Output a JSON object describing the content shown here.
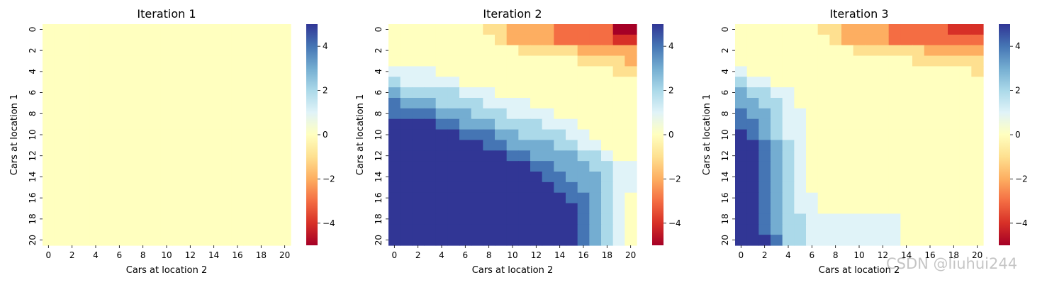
{
  "chart_data": [
    {
      "type": "heatmap",
      "title": "Iteration 1",
      "xlabel": "Cars at location 2",
      "ylabel": "Cars at location 1",
      "x_tick_labels": [
        "0",
        "2",
        "4",
        "6",
        "8",
        "10",
        "12",
        "14",
        "16",
        "18",
        "20"
      ],
      "y_tick_labels": [
        "0",
        "2",
        "4",
        "6",
        "8",
        "10",
        "12",
        "14",
        "16",
        "18",
        "20"
      ],
      "colorbar_ticks": [
        "−4",
        "−2",
        "0",
        "2",
        "4"
      ],
      "colormap": "RdYlBu",
      "value_range": [
        -5,
        5
      ],
      "grid_size": 21,
      "matrix": "all zeros (21x21)",
      "rows": []
    },
    {
      "type": "heatmap",
      "title": "Iteration 2",
      "xlabel": "Cars at location 2",
      "ylabel": "Cars at location 1",
      "x_tick_labels": [
        "0",
        "2",
        "4",
        "6",
        "8",
        "10",
        "12",
        "14",
        "16",
        "18",
        "20"
      ],
      "y_tick_labels": [
        "0",
        "2",
        "4",
        "6",
        "8",
        "10",
        "12",
        "14",
        "16",
        "18",
        "20"
      ],
      "colorbar_ticks": [
        "−4",
        "−2",
        "0",
        "2",
        "4"
      ],
      "colormap": "RdYlBu",
      "value_range": [
        -5,
        5
      ],
      "grid_size": 21,
      "rows": [
        [
          0,
          0,
          0,
          0,
          0,
          0,
          0,
          0,
          -1,
          -1,
          -2,
          -2,
          -2,
          -2,
          -3,
          -3,
          -3,
          -3,
          -3,
          -5,
          -5
        ],
        [
          0,
          0,
          0,
          0,
          0,
          0,
          0,
          0,
          0,
          -1,
          -2,
          -2,
          -2,
          -2,
          -3,
          -3,
          -3,
          -3,
          -3,
          -4,
          -4
        ],
        [
          0,
          0,
          0,
          0,
          0,
          0,
          0,
          0,
          0,
          0,
          0,
          -1,
          -1,
          -1,
          -1,
          -1,
          -2,
          -2,
          -2,
          -2,
          -2
        ],
        [
          0,
          0,
          0,
          0,
          0,
          0,
          0,
          0,
          0,
          0,
          0,
          0,
          0,
          0,
          0,
          0,
          -1,
          -1,
          -1,
          -1,
          -2
        ],
        [
          1,
          1,
          1,
          1,
          0,
          0,
          0,
          0,
          0,
          0,
          0,
          0,
          0,
          0,
          0,
          0,
          0,
          0,
          0,
          -1,
          -1
        ],
        [
          2,
          1,
          1,
          1,
          1,
          1,
          0,
          0,
          0,
          0,
          0,
          0,
          0,
          0,
          0,
          0,
          0,
          0,
          0,
          0,
          0
        ],
        [
          3,
          2,
          2,
          2,
          2,
          2,
          1,
          1,
          1,
          0,
          0,
          0,
          0,
          0,
          0,
          0,
          0,
          0,
          0,
          0,
          0
        ],
        [
          4,
          3,
          3,
          3,
          2,
          2,
          2,
          2,
          1,
          1,
          1,
          1,
          0,
          0,
          0,
          0,
          0,
          0,
          0,
          0,
          0
        ],
        [
          4,
          4,
          4,
          4,
          3,
          3,
          3,
          2,
          2,
          2,
          1,
          1,
          1,
          1,
          0,
          0,
          0,
          0,
          0,
          0,
          0
        ],
        [
          5,
          5,
          5,
          5,
          4,
          4,
          3,
          3,
          3,
          2,
          2,
          2,
          2,
          1,
          1,
          1,
          0,
          0,
          0,
          0,
          0
        ],
        [
          5,
          5,
          5,
          5,
          5,
          5,
          4,
          4,
          4,
          3,
          3,
          2,
          2,
          2,
          2,
          1,
          1,
          0,
          0,
          0,
          0
        ],
        [
          5,
          5,
          5,
          5,
          5,
          5,
          5,
          5,
          4,
          4,
          3,
          3,
          3,
          3,
          2,
          2,
          1,
          1,
          0,
          0,
          0
        ],
        [
          5,
          5,
          5,
          5,
          5,
          5,
          5,
          5,
          5,
          5,
          4,
          4,
          3,
          3,
          3,
          3,
          2,
          2,
          1,
          0,
          0
        ],
        [
          5,
          5,
          5,
          5,
          5,
          5,
          5,
          5,
          5,
          5,
          5,
          5,
          4,
          4,
          3,
          3,
          3,
          2,
          2,
          1,
          1
        ],
        [
          5,
          5,
          5,
          5,
          5,
          5,
          5,
          5,
          5,
          5,
          5,
          5,
          5,
          4,
          4,
          3,
          3,
          3,
          2,
          1,
          1
        ],
        [
          5,
          5,
          5,
          5,
          5,
          5,
          5,
          5,
          5,
          5,
          5,
          5,
          5,
          5,
          4,
          4,
          3,
          3,
          2,
          1,
          1
        ],
        [
          5,
          5,
          5,
          5,
          5,
          5,
          5,
          5,
          5,
          5,
          5,
          5,
          5,
          5,
          5,
          4,
          4,
          3,
          2,
          1,
          0
        ],
        [
          5,
          5,
          5,
          5,
          5,
          5,
          5,
          5,
          5,
          5,
          5,
          5,
          5,
          5,
          5,
          5,
          4,
          3,
          2,
          1,
          0
        ],
        [
          5,
          5,
          5,
          5,
          5,
          5,
          5,
          5,
          5,
          5,
          5,
          5,
          5,
          5,
          5,
          5,
          4,
          3,
          2,
          1,
          0
        ],
        [
          5,
          5,
          5,
          5,
          5,
          5,
          5,
          5,
          5,
          5,
          5,
          5,
          5,
          5,
          5,
          5,
          4,
          3,
          2,
          1,
          0
        ],
        [
          5,
          5,
          5,
          5,
          5,
          5,
          5,
          5,
          5,
          5,
          5,
          5,
          5,
          5,
          5,
          5,
          4,
          3,
          2,
          1,
          0
        ]
      ]
    },
    {
      "type": "heatmap",
      "title": "Iteration 3",
      "xlabel": "Cars at location 2",
      "ylabel": "Cars at location 1",
      "x_tick_labels": [
        "0",
        "2",
        "4",
        "6",
        "8",
        "10",
        "12",
        "14",
        "16",
        "18",
        "20"
      ],
      "y_tick_labels": [
        "0",
        "2",
        "4",
        "6",
        "8",
        "10",
        "12",
        "14",
        "16",
        "18",
        "20"
      ],
      "colorbar_ticks": [
        "−4",
        "−2",
        "0",
        "2",
        "4"
      ],
      "colormap": "RdYlBu",
      "value_range": [
        -5,
        5
      ],
      "grid_size": 21,
      "rows": [
        [
          0,
          0,
          0,
          0,
          0,
          0,
          0,
          -1,
          -1,
          -2,
          -2,
          -2,
          -2,
          -3,
          -3,
          -3,
          -3,
          -3,
          -4,
          -4,
          -4
        ],
        [
          0,
          0,
          0,
          0,
          0,
          0,
          0,
          0,
          -1,
          -2,
          -2,
          -2,
          -2,
          -3,
          -3,
          -3,
          -3,
          -3,
          -3,
          -3,
          -3
        ],
        [
          0,
          0,
          0,
          0,
          0,
          0,
          0,
          0,
          0,
          0,
          -1,
          -1,
          -1,
          -1,
          -1,
          -1,
          -2,
          -2,
          -2,
          -2,
          -2
        ],
        [
          0,
          0,
          0,
          0,
          0,
          0,
          0,
          0,
          0,
          0,
          0,
          0,
          0,
          0,
          0,
          -1,
          -1,
          -1,
          -1,
          -1,
          -1
        ],
        [
          1,
          0,
          0,
          0,
          0,
          0,
          0,
          0,
          0,
          0,
          0,
          0,
          0,
          0,
          0,
          0,
          0,
          0,
          0,
          0,
          -1
        ],
        [
          2,
          1,
          1,
          0,
          0,
          0,
          0,
          0,
          0,
          0,
          0,
          0,
          0,
          0,
          0,
          0,
          0,
          0,
          0,
          0,
          0
        ],
        [
          3,
          2,
          2,
          1,
          1,
          0,
          0,
          0,
          0,
          0,
          0,
          0,
          0,
          0,
          0,
          0,
          0,
          0,
          0,
          0,
          0
        ],
        [
          3,
          3,
          2,
          2,
          1,
          0,
          0,
          0,
          0,
          0,
          0,
          0,
          0,
          0,
          0,
          0,
          0,
          0,
          0,
          0,
          0
        ],
        [
          4,
          3,
          3,
          2,
          1,
          1,
          0,
          0,
          0,
          0,
          0,
          0,
          0,
          0,
          0,
          0,
          0,
          0,
          0,
          0,
          0
        ],
        [
          4,
          4,
          3,
          2,
          1,
          1,
          0,
          0,
          0,
          0,
          0,
          0,
          0,
          0,
          0,
          0,
          0,
          0,
          0,
          0,
          0
        ],
        [
          5,
          4,
          3,
          2,
          1,
          1,
          0,
          0,
          0,
          0,
          0,
          0,
          0,
          0,
          0,
          0,
          0,
          0,
          0,
          0,
          0
        ],
        [
          5,
          5,
          4,
          3,
          2,
          1,
          0,
          0,
          0,
          0,
          0,
          0,
          0,
          0,
          0,
          0,
          0,
          0,
          0,
          0,
          0
        ],
        [
          5,
          5,
          4,
          3,
          2,
          1,
          0,
          0,
          0,
          0,
          0,
          0,
          0,
          0,
          0,
          0,
          0,
          0,
          0,
          0,
          0
        ],
        [
          5,
          5,
          4,
          3,
          2,
          1,
          0,
          0,
          0,
          0,
          0,
          0,
          0,
          0,
          0,
          0,
          0,
          0,
          0,
          0,
          0
        ],
        [
          5,
          5,
          4,
          3,
          2,
          1,
          0,
          0,
          0,
          0,
          0,
          0,
          0,
          0,
          0,
          0,
          0,
          0,
          0,
          0,
          0
        ],
        [
          5,
          5,
          4,
          3,
          2,
          1,
          0,
          0,
          0,
          0,
          0,
          0,
          0,
          0,
          0,
          0,
          0,
          0,
          0,
          0,
          0
        ],
        [
          5,
          5,
          4,
          3,
          2,
          1,
          1,
          0,
          0,
          0,
          0,
          0,
          0,
          0,
          0,
          0,
          0,
          0,
          0,
          0,
          0
        ],
        [
          5,
          5,
          4,
          3,
          2,
          1,
          1,
          0,
          0,
          0,
          0,
          0,
          0,
          0,
          0,
          0,
          0,
          0,
          0,
          0,
          0
        ],
        [
          5,
          5,
          4,
          3,
          2,
          2,
          1,
          1,
          1,
          1,
          1,
          1,
          1,
          1,
          0,
          0,
          0,
          0,
          0,
          0,
          0
        ],
        [
          5,
          5,
          4,
          3,
          2,
          2,
          1,
          1,
          1,
          1,
          1,
          1,
          1,
          1,
          0,
          0,
          0,
          0,
          0,
          0,
          0
        ],
        [
          5,
          5,
          5,
          4,
          2,
          2,
          1,
          1,
          1,
          1,
          1,
          1,
          1,
          1,
          0,
          0,
          0,
          0,
          0,
          0,
          0
        ]
      ]
    }
  ],
  "palette": {
    "-5": "#a50026",
    "-4": "#d73027",
    "-3": "#f46d43",
    "-2": "#fdae61",
    "-1": "#fee090",
    "0": "#ffffbf",
    "1": "#e0f3f8",
    "2": "#abd9e9",
    "3": "#74add1",
    "4": "#4575b4",
    "5": "#313695"
  },
  "colorbar_gradient": [
    "#a50026",
    "#d73027",
    "#f46d43",
    "#fdae61",
    "#fee090",
    "#ffffbf",
    "#e0f3f8",
    "#abd9e9",
    "#74add1",
    "#4575b4",
    "#313695"
  ],
  "watermark": "CSDN @liuhui244"
}
